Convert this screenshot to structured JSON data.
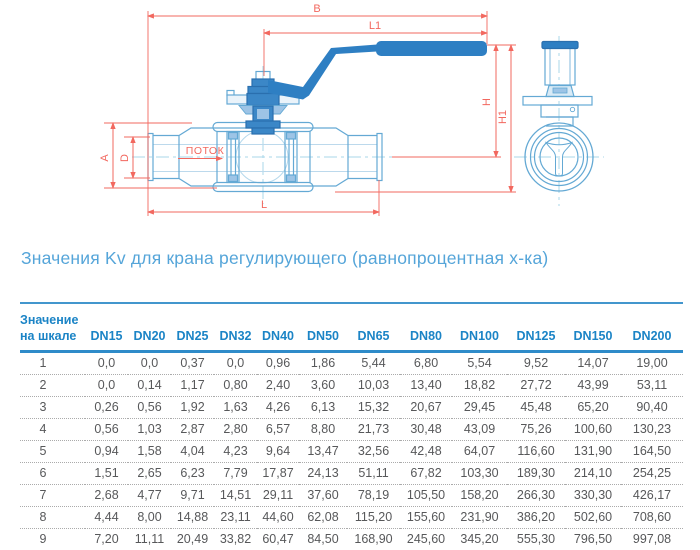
{
  "drawing": {
    "dimension_labels": {
      "b": "B",
      "l1": "L1",
      "h": "H",
      "h1": "H1",
      "a": "A",
      "d": "D",
      "l": "L"
    },
    "flow_label": "ПОТОК",
    "colors": {
      "outline_blue": "#64a9d4",
      "solid_blue": "#2e7fc3",
      "dimension_red": "#f2685f",
      "centerline_cyan": "#a9d7ea"
    }
  },
  "title": "Значения Kv для крана регулирующего (равнопроцентная х-ка)",
  "table": {
    "scale_header_line1": "Значение",
    "scale_header_line2": "на шкале",
    "dn_columns": [
      "DN15",
      "DN20",
      "DN25",
      "DN32",
      "DN40",
      "DN50",
      "DN65",
      "DN80",
      "DN100",
      "DN125",
      "DN150",
      "DN200"
    ],
    "rows": [
      {
        "scale": "1",
        "values": [
          "0,0",
          "0,0",
          "0,37",
          "0,0",
          "0,96",
          "1,86",
          "5,44",
          "6,80",
          "5,54",
          "9,52",
          "14,07",
          "19,00"
        ]
      },
      {
        "scale": "2",
        "values": [
          "0,0",
          "0,14",
          "1,17",
          "0,80",
          "2,40",
          "3,60",
          "10,03",
          "13,40",
          "18,82",
          "27,72",
          "43,99",
          "53,11"
        ]
      },
      {
        "scale": "3",
        "values": [
          "0,26",
          "0,56",
          "1,92",
          "1,63",
          "4,26",
          "6,13",
          "15,32",
          "20,67",
          "29,45",
          "45,48",
          "65,20",
          "90,40"
        ]
      },
      {
        "scale": "4",
        "values": [
          "0,56",
          "1,03",
          "2,87",
          "2,80",
          "6,57",
          "8,80",
          "21,73",
          "30,48",
          "43,09",
          "75,26",
          "100,60",
          "130,23"
        ]
      },
      {
        "scale": "5",
        "values": [
          "0,94",
          "1,58",
          "4,04",
          "4,23",
          "9,64",
          "13,47",
          "32,56",
          "42,48",
          "64,07",
          "116,60",
          "131,90",
          "164,50"
        ]
      },
      {
        "scale": "6",
        "values": [
          "1,51",
          "2,65",
          "6,23",
          "7,79",
          "17,87",
          "24,13",
          "51,11",
          "67,82",
          "103,30",
          "189,30",
          "214,10",
          "254,25"
        ]
      },
      {
        "scale": "7",
        "values": [
          "2,68",
          "4,77",
          "9,71",
          "14,51",
          "29,11",
          "37,60",
          "78,19",
          "105,50",
          "158,20",
          "266,30",
          "330,30",
          "426,17"
        ]
      },
      {
        "scale": "8",
        "values": [
          "4,44",
          "8,00",
          "14,88",
          "23,11",
          "44,60",
          "62,08",
          "115,20",
          "155,60",
          "231,90",
          "386,20",
          "502,60",
          "708,60"
        ]
      },
      {
        "scale": "9",
        "values": [
          "7,20",
          "11,11",
          "20,49",
          "33,82",
          "60,47",
          "84,50",
          "168,90",
          "245,60",
          "345,20",
          "555,30",
          "796,50",
          "997,08"
        ]
      }
    ]
  }
}
